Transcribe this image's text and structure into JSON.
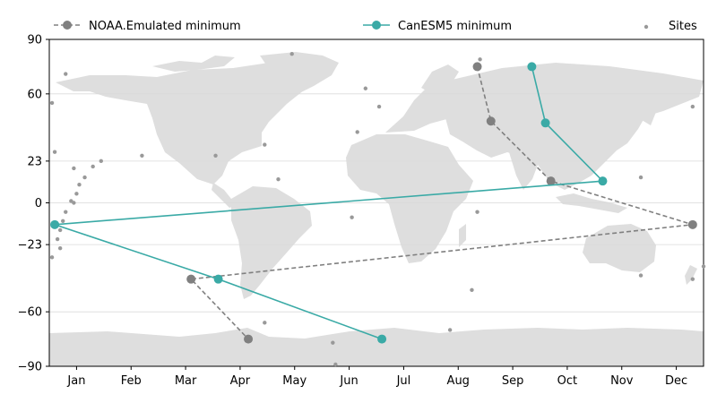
{
  "chart_data": {
    "type": "scatter",
    "title": "",
    "xlabel": "",
    "ylabel": "",
    "x_ticks": [
      "Jan",
      "Feb",
      "Mar",
      "Apr",
      "May",
      "Jun",
      "Jul",
      "Aug",
      "Sep",
      "Oct",
      "Nov",
      "Dec"
    ],
    "y_ticks": [
      90,
      60,
      23,
      0,
      -23,
      -60,
      -90
    ],
    "ylim": [
      -90,
      90
    ],
    "xlim_months": [
      0.5,
      12.5
    ],
    "grid": "horizontal",
    "legend_position": "top",
    "background": "world-map",
    "series": [
      {
        "name": "NOAA.Emulated minimum",
        "style": "dashed-line-with-markers",
        "color": "#808080",
        "points": [
          {
            "month": 8.35,
            "lat": 75
          },
          {
            "month": 8.6,
            "lat": 45
          },
          {
            "month": 9.7,
            "lat": 12
          },
          {
            "month": 12.3,
            "lat": -12
          },
          {
            "month": 3.1,
            "lat": -42
          },
          {
            "month": 4.15,
            "lat": -75
          }
        ]
      },
      {
        "name": "CanESM5 minimum",
        "style": "solid-line-with-markers",
        "color": "#3aaaa6",
        "points": [
          {
            "month": 9.35,
            "lat": 75
          },
          {
            "month": 9.6,
            "lat": 44
          },
          {
            "month": 10.65,
            "lat": 12
          },
          {
            "month": 0.6,
            "lat": -12
          },
          {
            "month": 3.6,
            "lat": -42
          },
          {
            "month": 6.6,
            "lat": -75
          }
        ]
      },
      {
        "name": "Sites",
        "style": "scatter-small",
        "color": "#999999",
        "points": [
          {
            "month": 4.95,
            "lat": 82
          },
          {
            "month": 0.8,
            "lat": 71
          },
          {
            "month": 8.4,
            "lat": 79
          },
          {
            "month": 0.55,
            "lat": 55
          },
          {
            "month": 6.3,
            "lat": 63
          },
          {
            "month": 6.55,
            "lat": 53
          },
          {
            "month": 6.15,
            "lat": 39
          },
          {
            "month": 4.45,
            "lat": 32
          },
          {
            "month": 2.2,
            "lat": 26
          },
          {
            "month": 3.55,
            "lat": 26
          },
          {
            "month": 4.7,
            "lat": 13
          },
          {
            "month": 0.6,
            "lat": 28
          },
          {
            "month": 0.95,
            "lat": 19
          },
          {
            "month": 1.3,
            "lat": 20
          },
          {
            "month": 1.45,
            "lat": 23
          },
          {
            "month": 1.15,
            "lat": 14
          },
          {
            "month": 1.05,
            "lat": 10
          },
          {
            "month": 1.0,
            "lat": 5
          },
          {
            "month": 0.9,
            "lat": 1
          },
          {
            "month": 0.95,
            "lat": 0
          },
          {
            "month": 0.8,
            "lat": -5
          },
          {
            "month": 0.75,
            "lat": -10
          },
          {
            "month": 0.7,
            "lat": -15
          },
          {
            "month": 0.65,
            "lat": -20
          },
          {
            "month": 0.7,
            "lat": -25
          },
          {
            "month": 0.55,
            "lat": -30
          },
          {
            "month": 6.05,
            "lat": -8
          },
          {
            "month": 8.35,
            "lat": -5
          },
          {
            "month": 11.35,
            "lat": 14
          },
          {
            "month": 12.3,
            "lat": 53
          },
          {
            "month": 8.25,
            "lat": -48
          },
          {
            "month": 11.35,
            "lat": -40
          },
          {
            "month": 12.3,
            "lat": -42
          },
          {
            "month": 12.5,
            "lat": -35
          },
          {
            "month": 4.45,
            "lat": -66
          },
          {
            "month": 5.7,
            "lat": -77
          },
          {
            "month": 7.85,
            "lat": -70
          },
          {
            "month": 5.75,
            "lat": -89
          }
        ]
      }
    ]
  },
  "legend": {
    "items": [
      {
        "label": "NOAA.Emulated minimum",
        "color": "#808080"
      },
      {
        "label": "CanESM5 minimum",
        "color": "#3aaaa6"
      },
      {
        "label": "Sites",
        "color": "#999999"
      }
    ]
  }
}
